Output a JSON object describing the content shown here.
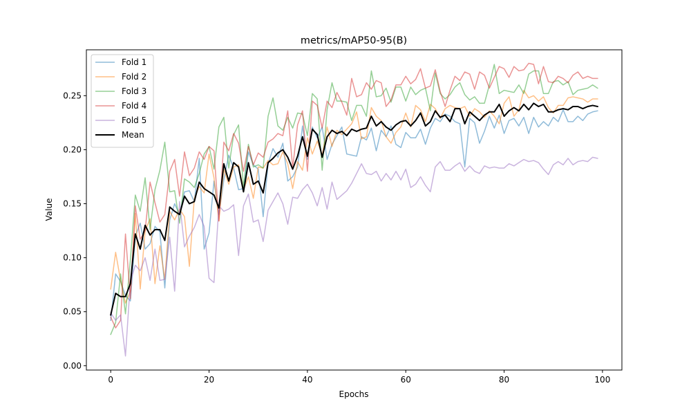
{
  "chart_data": {
    "type": "line",
    "title": "metrics/mAP50-95(B)",
    "xlabel": "Epochs",
    "ylabel": "Value",
    "xlim": [
      -4.95,
      103.95
    ],
    "ylim": [
      -0.004,
      0.2925
    ],
    "xticks": [
      0,
      20,
      40,
      60,
      80,
      100
    ],
    "xtick_labels": [
      "0",
      "20",
      "40",
      "60",
      "80",
      "100"
    ],
    "yticks": [
      0.0,
      0.05,
      0.1,
      0.15,
      0.2,
      0.25
    ],
    "ytick_labels": [
      "0.00",
      "0.05",
      "0.10",
      "0.15",
      "0.20",
      "0.25"
    ],
    "grid": false,
    "legend_position": "top-left",
    "series": [
      {
        "name": "Fold 1",
        "color": "#1f77b4",
        "alpha": 0.5,
        "values": [
          0.042,
          0.085,
          0.078,
          0.065,
          0.06,
          0.12,
          0.132,
          0.108,
          0.113,
          0.129,
          0.124,
          0.072,
          0.135,
          0.15,
          0.14,
          0.161,
          0.162,
          0.152,
          0.192,
          0.108,
          0.123,
          0.171,
          0.14,
          0.172,
          0.195,
          0.183,
          0.163,
          0.164,
          0.198,
          0.186,
          0.182,
          0.138,
          0.187,
          0.201,
          0.193,
          0.206,
          0.171,
          0.175,
          0.184,
          0.222,
          0.191,
          0.221,
          0.211,
          0.221,
          0.191,
          0.205,
          0.213,
          0.221,
          0.196,
          0.195,
          0.194,
          0.212,
          0.209,
          0.22,
          0.199,
          0.218,
          0.212,
          0.222,
          0.205,
          0.202,
          0.216,
          0.211,
          0.211,
          0.219,
          0.205,
          0.22,
          0.229,
          0.226,
          0.233,
          0.231,
          0.226,
          0.224,
          0.184,
          0.229,
          0.225,
          0.206,
          0.217,
          0.231,
          0.22,
          0.232,
          0.215,
          0.227,
          0.229,
          0.222,
          0.23,
          0.215,
          0.23,
          0.221,
          0.226,
          0.222,
          0.23,
          0.226,
          0.237,
          0.226,
          0.226,
          0.231,
          0.227,
          0.233,
          0.235,
          0.236
        ]
      },
      {
        "name": "Fold 2",
        "color": "#ff7f0e",
        "alpha": 0.5,
        "values": [
          0.071,
          0.105,
          0.079,
          0.058,
          0.069,
          0.141,
          0.071,
          0.125,
          0.136,
          0.076,
          0.111,
          0.08,
          0.143,
          0.135,
          0.145,
          0.138,
          0.092,
          0.155,
          0.166,
          0.16,
          0.196,
          0.174,
          0.134,
          0.182,
          0.168,
          0.184,
          0.186,
          0.163,
          0.175,
          0.155,
          0.184,
          0.183,
          0.19,
          0.186,
          0.187,
          0.198,
          0.187,
          0.164,
          0.189,
          0.181,
          0.211,
          0.196,
          0.208,
          0.195,
          0.221,
          0.203,
          0.218,
          0.214,
          0.219,
          0.224,
          0.235,
          0.21,
          0.212,
          0.239,
          0.231,
          0.227,
          0.212,
          0.206,
          0.216,
          0.221,
          0.234,
          0.221,
          0.241,
          0.237,
          0.226,
          0.242,
          0.238,
          0.229,
          0.238,
          0.241,
          0.239,
          0.238,
          0.24,
          0.231,
          0.238,
          0.235,
          0.23,
          0.236,
          0.231,
          0.224,
          0.243,
          0.249,
          0.231,
          0.237,
          0.255,
          0.248,
          0.25,
          0.245,
          0.249,
          0.239,
          0.234,
          0.241,
          0.241,
          0.248,
          0.249,
          0.248,
          0.247,
          0.244,
          0.247,
          0.247
        ]
      },
      {
        "name": "Fold 3",
        "color": "#2ca02c",
        "alpha": 0.5,
        "values": [
          0.029,
          0.04,
          0.085,
          0.048,
          0.098,
          0.158,
          0.143,
          0.174,
          0.126,
          0.163,
          0.181,
          0.207,
          0.161,
          0.162,
          0.132,
          0.173,
          0.17,
          0.165,
          0.178,
          0.196,
          0.203,
          0.182,
          0.221,
          0.23,
          0.183,
          0.214,
          0.223,
          0.165,
          0.205,
          0.184,
          0.186,
          0.183,
          0.231,
          0.248,
          0.222,
          0.218,
          0.23,
          0.22,
          0.234,
          0.233,
          0.213,
          0.252,
          0.247,
          0.181,
          0.237,
          0.262,
          0.245,
          0.245,
          0.244,
          0.227,
          0.241,
          0.241,
          0.231,
          0.273,
          0.249,
          0.25,
          0.257,
          0.244,
          0.258,
          0.258,
          0.245,
          0.258,
          0.251,
          0.255,
          0.257,
          0.236,
          0.271,
          0.252,
          0.247,
          0.251,
          0.258,
          0.262,
          0.251,
          0.246,
          0.249,
          0.243,
          0.243,
          0.26,
          0.279,
          0.252,
          0.255,
          0.254,
          0.253,
          0.26,
          0.252,
          0.27,
          0.273,
          0.273,
          0.252,
          0.252,
          0.263,
          0.264,
          0.26,
          0.263,
          0.251,
          0.255,
          0.256,
          0.257,
          0.26,
          0.257
        ]
      },
      {
        "name": "Fold 4",
        "color": "#d62728",
        "alpha": 0.5,
        "values": [
          0.045,
          0.035,
          0.042,
          0.122,
          0.062,
          0.148,
          0.117,
          0.125,
          0.17,
          0.151,
          0.133,
          0.14,
          0.18,
          0.191,
          0.157,
          0.198,
          0.176,
          0.183,
          0.198,
          0.191,
          0.203,
          0.199,
          0.134,
          0.207,
          0.199,
          0.215,
          0.206,
          0.18,
          0.203,
          0.186,
          0.197,
          0.193,
          0.207,
          0.21,
          0.215,
          0.213,
          0.236,
          0.183,
          0.223,
          0.236,
          0.18,
          0.245,
          0.241,
          0.22,
          0.245,
          0.239,
          0.253,
          0.244,
          0.232,
          0.266,
          0.249,
          0.251,
          0.262,
          0.256,
          0.264,
          0.262,
          0.24,
          0.246,
          0.26,
          0.26,
          0.268,
          0.261,
          0.265,
          0.275,
          0.257,
          0.259,
          0.274,
          0.254,
          0.24,
          0.255,
          0.268,
          0.264,
          0.272,
          0.27,
          0.256,
          0.272,
          0.269,
          0.257,
          0.267,
          0.277,
          0.275,
          0.267,
          0.277,
          0.273,
          0.274,
          0.28,
          0.279,
          0.261,
          0.277,
          0.263,
          0.262,
          0.268,
          0.266,
          0.262,
          0.269,
          0.272,
          0.266,
          0.268,
          0.266,
          0.266
        ]
      },
      {
        "name": "Fold 5",
        "color": "#9467bd",
        "alpha": 0.5,
        "values": [
          0.049,
          0.042,
          0.047,
          0.009,
          0.078,
          0.093,
          0.088,
          0.1,
          0.079,
          0.108,
          0.079,
          0.08,
          0.119,
          0.069,
          0.152,
          0.11,
          0.12,
          0.128,
          0.14,
          0.129,
          0.081,
          0.077,
          0.148,
          0.143,
          0.145,
          0.149,
          0.102,
          0.148,
          0.159,
          0.133,
          0.135,
          0.115,
          0.144,
          0.152,
          0.16,
          0.15,
          0.131,
          0.156,
          0.155,
          0.163,
          0.168,
          0.16,
          0.148,
          0.165,
          0.145,
          0.17,
          0.154,
          0.158,
          0.162,
          0.169,
          0.178,
          0.187,
          0.178,
          0.177,
          0.18,
          0.171,
          0.178,
          0.172,
          0.18,
          0.172,
          0.182,
          0.165,
          0.168,
          0.175,
          0.167,
          0.161,
          0.184,
          0.189,
          0.181,
          0.181,
          0.185,
          0.188,
          0.18,
          0.185,
          0.18,
          0.178,
          0.185,
          0.183,
          0.184,
          0.183,
          0.183,
          0.187,
          0.185,
          0.188,
          0.191,
          0.189,
          0.19,
          0.188,
          0.182,
          0.177,
          0.186,
          0.189,
          0.186,
          0.192,
          0.186,
          0.189,
          0.19,
          0.189,
          0.193,
          0.192
        ]
      },
      {
        "name": "Mean",
        "color": "#000000",
        "alpha": 1.0,
        "width": 2,
        "values": [
          0.047,
          0.067,
          0.064,
          0.064,
          0.076,
          0.122,
          0.108,
          0.13,
          0.121,
          0.126,
          0.126,
          0.116,
          0.147,
          0.143,
          0.14,
          0.157,
          0.15,
          0.152,
          0.17,
          0.164,
          0.161,
          0.158,
          0.146,
          0.187,
          0.171,
          0.188,
          0.184,
          0.161,
          0.188,
          0.168,
          0.171,
          0.16,
          0.188,
          0.192,
          0.197,
          0.2,
          0.193,
          0.182,
          0.194,
          0.212,
          0.194,
          0.219,
          0.214,
          0.193,
          0.212,
          0.218,
          0.215,
          0.217,
          0.213,
          0.219,
          0.217,
          0.219,
          0.22,
          0.231,
          0.222,
          0.226,
          0.221,
          0.218,
          0.223,
          0.226,
          0.227,
          0.222,
          0.227,
          0.234,
          0.222,
          0.226,
          0.236,
          0.23,
          0.232,
          0.226,
          0.238,
          0.238,
          0.224,
          0.235,
          0.231,
          0.227,
          0.232,
          0.235,
          0.235,
          0.242,
          0.231,
          0.236,
          0.239,
          0.236,
          0.242,
          0.237,
          0.243,
          0.24,
          0.242,
          0.235,
          0.235,
          0.237,
          0.238,
          0.237,
          0.24,
          0.24,
          0.238,
          0.24,
          0.241,
          0.24
        ]
      }
    ]
  }
}
